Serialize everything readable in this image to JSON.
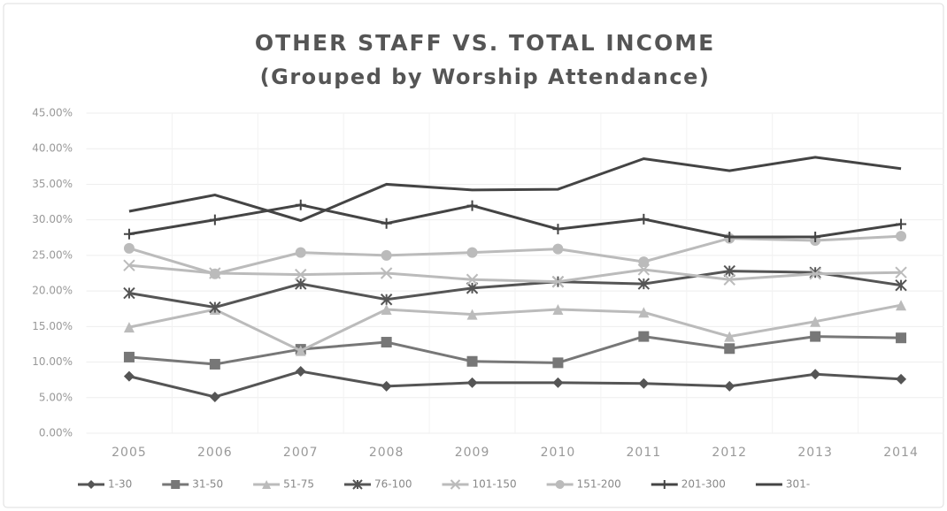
{
  "chart_data": {
    "type": "line",
    "title": "OTHER STAFF VS. TOTAL INCOME",
    "subtitle": "(Grouped by Worship Attendance)",
    "categories": [
      "2005",
      "2006",
      "2007",
      "2008",
      "2009",
      "2010",
      "2011",
      "2012",
      "2013",
      "2014"
    ],
    "series": [
      {
        "name": "1-30",
        "color": "#555555",
        "marker": "diamond",
        "values": [
          8.0,
          5.1,
          8.7,
          6.6,
          7.1,
          7.1,
          7.0,
          6.6,
          8.3,
          7.6
        ]
      },
      {
        "name": "31-50",
        "color": "#777777",
        "marker": "square",
        "values": [
          10.7,
          9.7,
          11.8,
          12.8,
          10.1,
          9.9,
          13.6,
          11.9,
          13.6,
          13.4
        ]
      },
      {
        "name": "51-75",
        "color": "#bbbbbb",
        "marker": "triangle",
        "values": [
          14.9,
          17.4,
          11.6,
          17.4,
          16.7,
          17.4,
          17.0,
          13.6,
          15.7,
          18.0
        ]
      },
      {
        "name": "76-100",
        "color": "#555555",
        "marker": "star",
        "values": [
          19.7,
          17.7,
          21.0,
          18.8,
          20.4,
          21.3,
          21.0,
          22.8,
          22.6,
          20.8
        ]
      },
      {
        "name": "101-150",
        "color": "#bbbbbb",
        "marker": "x",
        "values": [
          23.6,
          22.5,
          22.3,
          22.5,
          21.6,
          21.3,
          23.0,
          21.6,
          22.4,
          22.6
        ]
      },
      {
        "name": "151-200",
        "color": "#bbbbbb",
        "marker": "circle",
        "values": [
          26.0,
          22.4,
          25.4,
          25.0,
          25.4,
          25.9,
          24.1,
          27.4,
          27.1,
          27.7
        ]
      },
      {
        "name": "201-300",
        "color": "#444444",
        "marker": "plus",
        "values": [
          28.0,
          30.0,
          32.1,
          29.5,
          32.0,
          28.7,
          30.1,
          27.6,
          27.6,
          29.4
        ]
      },
      {
        "name": "301-",
        "color": "#444444",
        "marker": "none",
        "values": [
          31.2,
          33.5,
          29.9,
          35.0,
          34.2,
          34.3,
          38.6,
          36.9,
          38.8,
          37.2
        ]
      }
    ],
    "ylim": [
      0,
      45
    ],
    "yticks": [
      {
        "value": 0,
        "label": "0.00%"
      },
      {
        "value": 5,
        "label": "5.00%"
      },
      {
        "value": 10,
        "label": "10.00%"
      },
      {
        "value": 15,
        "label": "15.00%"
      },
      {
        "value": 20,
        "label": "20.00%"
      },
      {
        "value": 25,
        "label": "25.00%"
      },
      {
        "value": 30,
        "label": "30.00%"
      },
      {
        "value": 35,
        "label": "35.00%"
      },
      {
        "value": 40,
        "label": "40.00%"
      },
      {
        "value": 45,
        "label": "45.00%"
      }
    ],
    "grid": true,
    "legend": "bottom"
  }
}
